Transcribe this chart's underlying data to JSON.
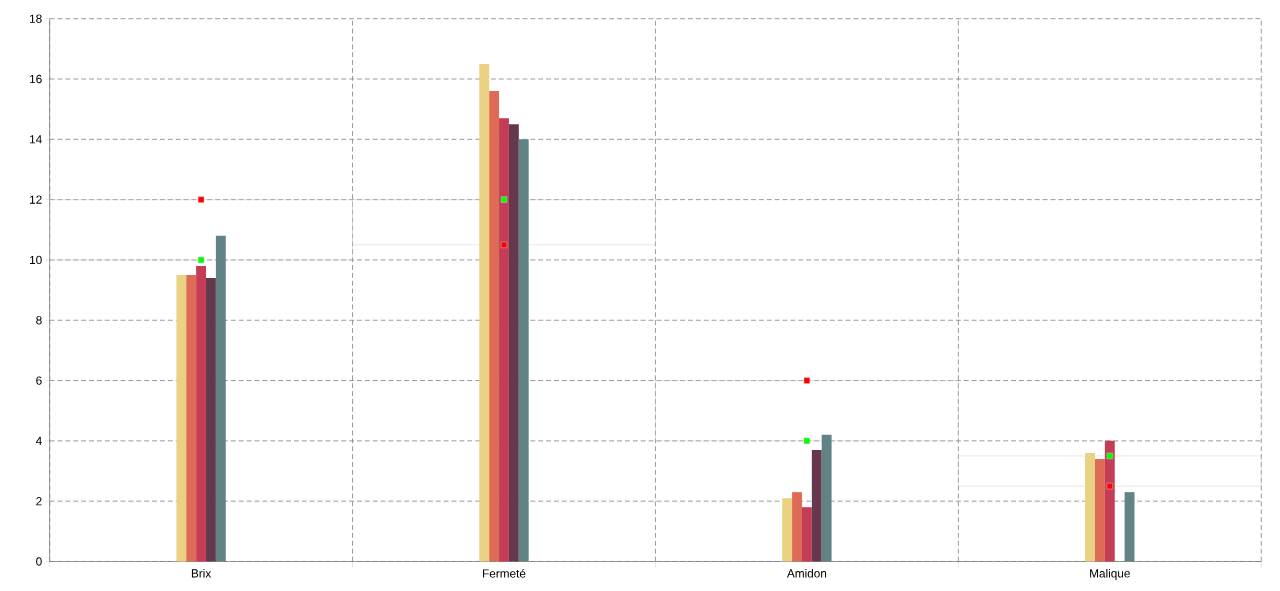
{
  "chart_data": {
    "type": "bar",
    "categories": [
      "Brix",
      "Fermeté",
      "Amidon",
      "Malique"
    ],
    "series": [
      {
        "color": "#ebd282",
        "values": [
          9.5,
          16.5,
          2.1,
          3.6
        ]
      },
      {
        "color": "#dd6b55",
        "values": [
          9.5,
          15.6,
          2.3,
          3.4
        ]
      },
      {
        "color": "#c43c55",
        "values": [
          9.8,
          14.7,
          1.8,
          4.0
        ]
      },
      {
        "color": "#66384e",
        "values": [
          9.4,
          14.5,
          3.7,
          null
        ]
      },
      {
        "color": "#628385",
        "values": [
          10.8,
          14.0,
          4.2,
          2.3
        ]
      },
      {
        "type": "scatter",
        "color": "#ff0000",
        "values": [
          12,
          10.5,
          6,
          2.5
        ]
      },
      {
        "type": "scatter",
        "color": "#00ff00",
        "values": [
          10,
          12,
          4,
          3.5
        ]
      }
    ],
    "ylim": [
      0,
      18
    ],
    "yticks": [
      0,
      2,
      4,
      6,
      8,
      10,
      12,
      14,
      16,
      18
    ],
    "grid": true,
    "marker": "square"
  }
}
